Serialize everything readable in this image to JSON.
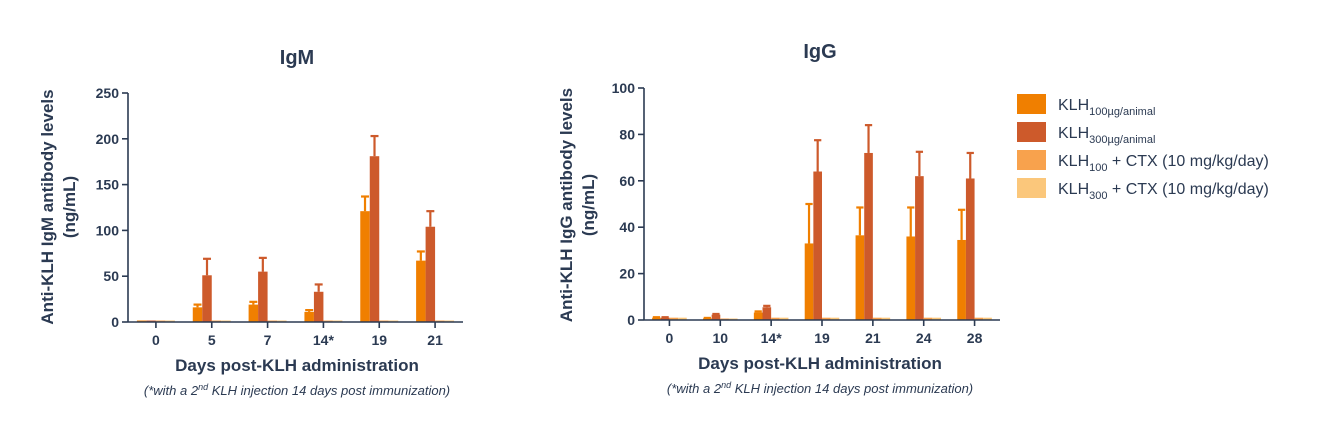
{
  "chart_data": [
    {
      "type": "bar",
      "title": "IgM",
      "ylabel_line1": "Anti-KLH IgM antibody levels",
      "ylabel_line2": "(ng/mL)",
      "xlabel": "Days post-KLH administration",
      "note": {
        "pre": "(*with a 2",
        "sup": "nd",
        "post": " KLH injection 14 days post immunization)"
      },
      "categories": [
        "0",
        "5",
        "7",
        "14*",
        "19",
        "21"
      ],
      "ylim": [
        0,
        250
      ],
      "yticks": [
        0,
        50,
        100,
        150,
        200,
        250
      ],
      "series": [
        {
          "values": [
            0.5,
            16,
            19,
            11,
            121,
            67
          ],
          "errors": [
            0,
            3,
            3,
            2,
            16,
            10
          ]
        },
        {
          "values": [
            1,
            51,
            55,
            33,
            181,
            104
          ],
          "errors": [
            0,
            18,
            15,
            8,
            22,
            17
          ]
        },
        {
          "values": [
            0.5,
            0.5,
            0.5,
            0.5,
            0.5,
            0.5
          ],
          "errors": [
            0,
            0,
            0,
            0,
            0,
            0
          ]
        },
        {
          "values": [
            0.5,
            0.5,
            0.5,
            0.5,
            0.5,
            0.5
          ],
          "errors": [
            0,
            0,
            0,
            0,
            0,
            0
          ]
        }
      ]
    },
    {
      "type": "bar",
      "title": "IgG",
      "ylabel_line1": "Anti-KLH IgG antibody levels",
      "ylabel_line2": "(ng/mL)",
      "xlabel": "Days post-KLH administration",
      "note": {
        "pre": "(*with a 2",
        "sup": "nd",
        "post": " KLH injection 14 days post immunization)"
      },
      "categories": [
        "0",
        "10",
        "14*",
        "19",
        "21",
        "24",
        "28"
      ],
      "ylim": [
        0,
        100
      ],
      "yticks": [
        0,
        20,
        40,
        60,
        80,
        100
      ],
      "series": [
        {
          "values": [
            1,
            0.7,
            3.2,
            33,
            36.5,
            36,
            34.5
          ],
          "errors": [
            0.2,
            0.2,
            0.5,
            17,
            12,
            12.5,
            13
          ]
        },
        {
          "values": [
            1,
            2.3,
            5.5,
            64,
            72,
            62,
            61
          ],
          "errors": [
            0.2,
            0.3,
            0.6,
            13.5,
            12,
            10.5,
            11
          ]
        },
        {
          "values": [
            1,
            0.6,
            1,
            1,
            1,
            1,
            1
          ],
          "errors": [
            0,
            0,
            0,
            0,
            0,
            0,
            0
          ]
        },
        {
          "values": [
            1,
            0.6,
            1,
            1,
            1,
            1,
            1
          ],
          "errors": [
            0,
            0,
            0,
            0,
            0,
            0,
            0
          ]
        }
      ]
    }
  ],
  "legend": [
    {
      "base": "KLH",
      "sub": "100µg/animal",
      "tail": "",
      "color": "#f07f00"
    },
    {
      "base": "KLH",
      "sub": "300µg/animal",
      "tail": "",
      "color": "#cd5a2b"
    },
    {
      "base": "KLH",
      "sub": "100",
      "tail": " + CTX (10 mg/kg/day)",
      "color": "#f8a24d"
    },
    {
      "base": "KLH",
      "sub": "300",
      "tail": " + CTX (10 mg/kg/day)",
      "color": "#fbc77b"
    }
  ]
}
